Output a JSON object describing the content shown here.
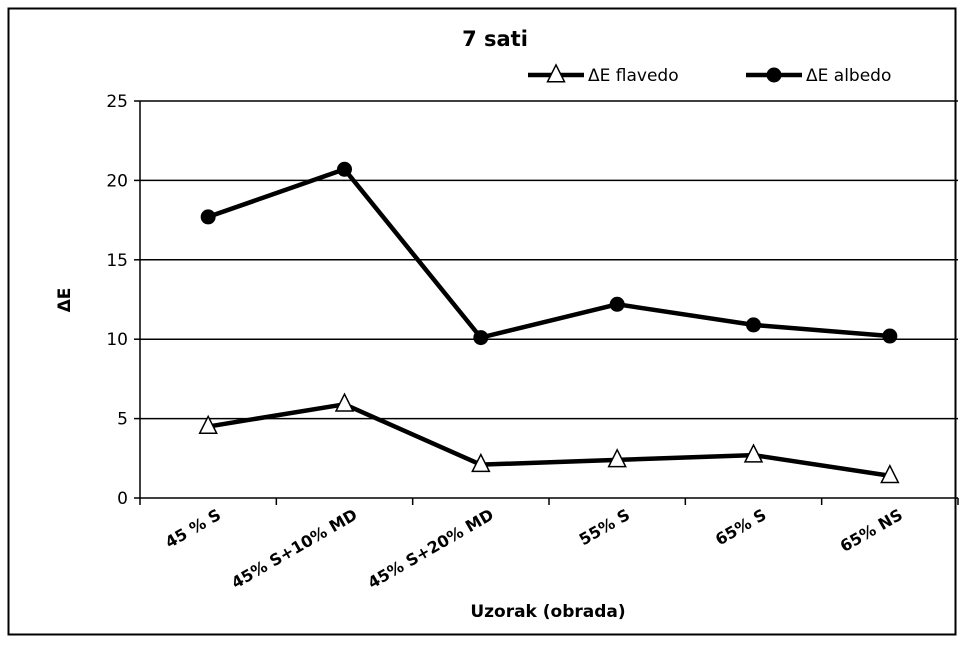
{
  "chart_data": {
    "type": "line",
    "title": "7 sati",
    "xlabel": "Uzorak (obrada)",
    "ylabel": "ΔE",
    "categories": [
      "45 % S",
      "45% S+10% MD",
      "45% S+20% MD",
      "55% S",
      "65% S",
      "65% NS"
    ],
    "ylim": [
      0,
      25
    ],
    "yticks": [
      0,
      5,
      10,
      15,
      20,
      25
    ],
    "grid": true,
    "legend_position": "top-right",
    "series": [
      {
        "name": "ΔE flavedo",
        "marker": "triangle-open",
        "color": "#000000",
        "values": [
          4.5,
          5.9,
          2.1,
          2.4,
          2.7,
          1.4
        ]
      },
      {
        "name": "ΔE albedo",
        "marker": "circle-filled",
        "color": "#000000",
        "values": [
          17.7,
          20.7,
          10.1,
          12.2,
          10.9,
          10.2
        ]
      }
    ]
  }
}
